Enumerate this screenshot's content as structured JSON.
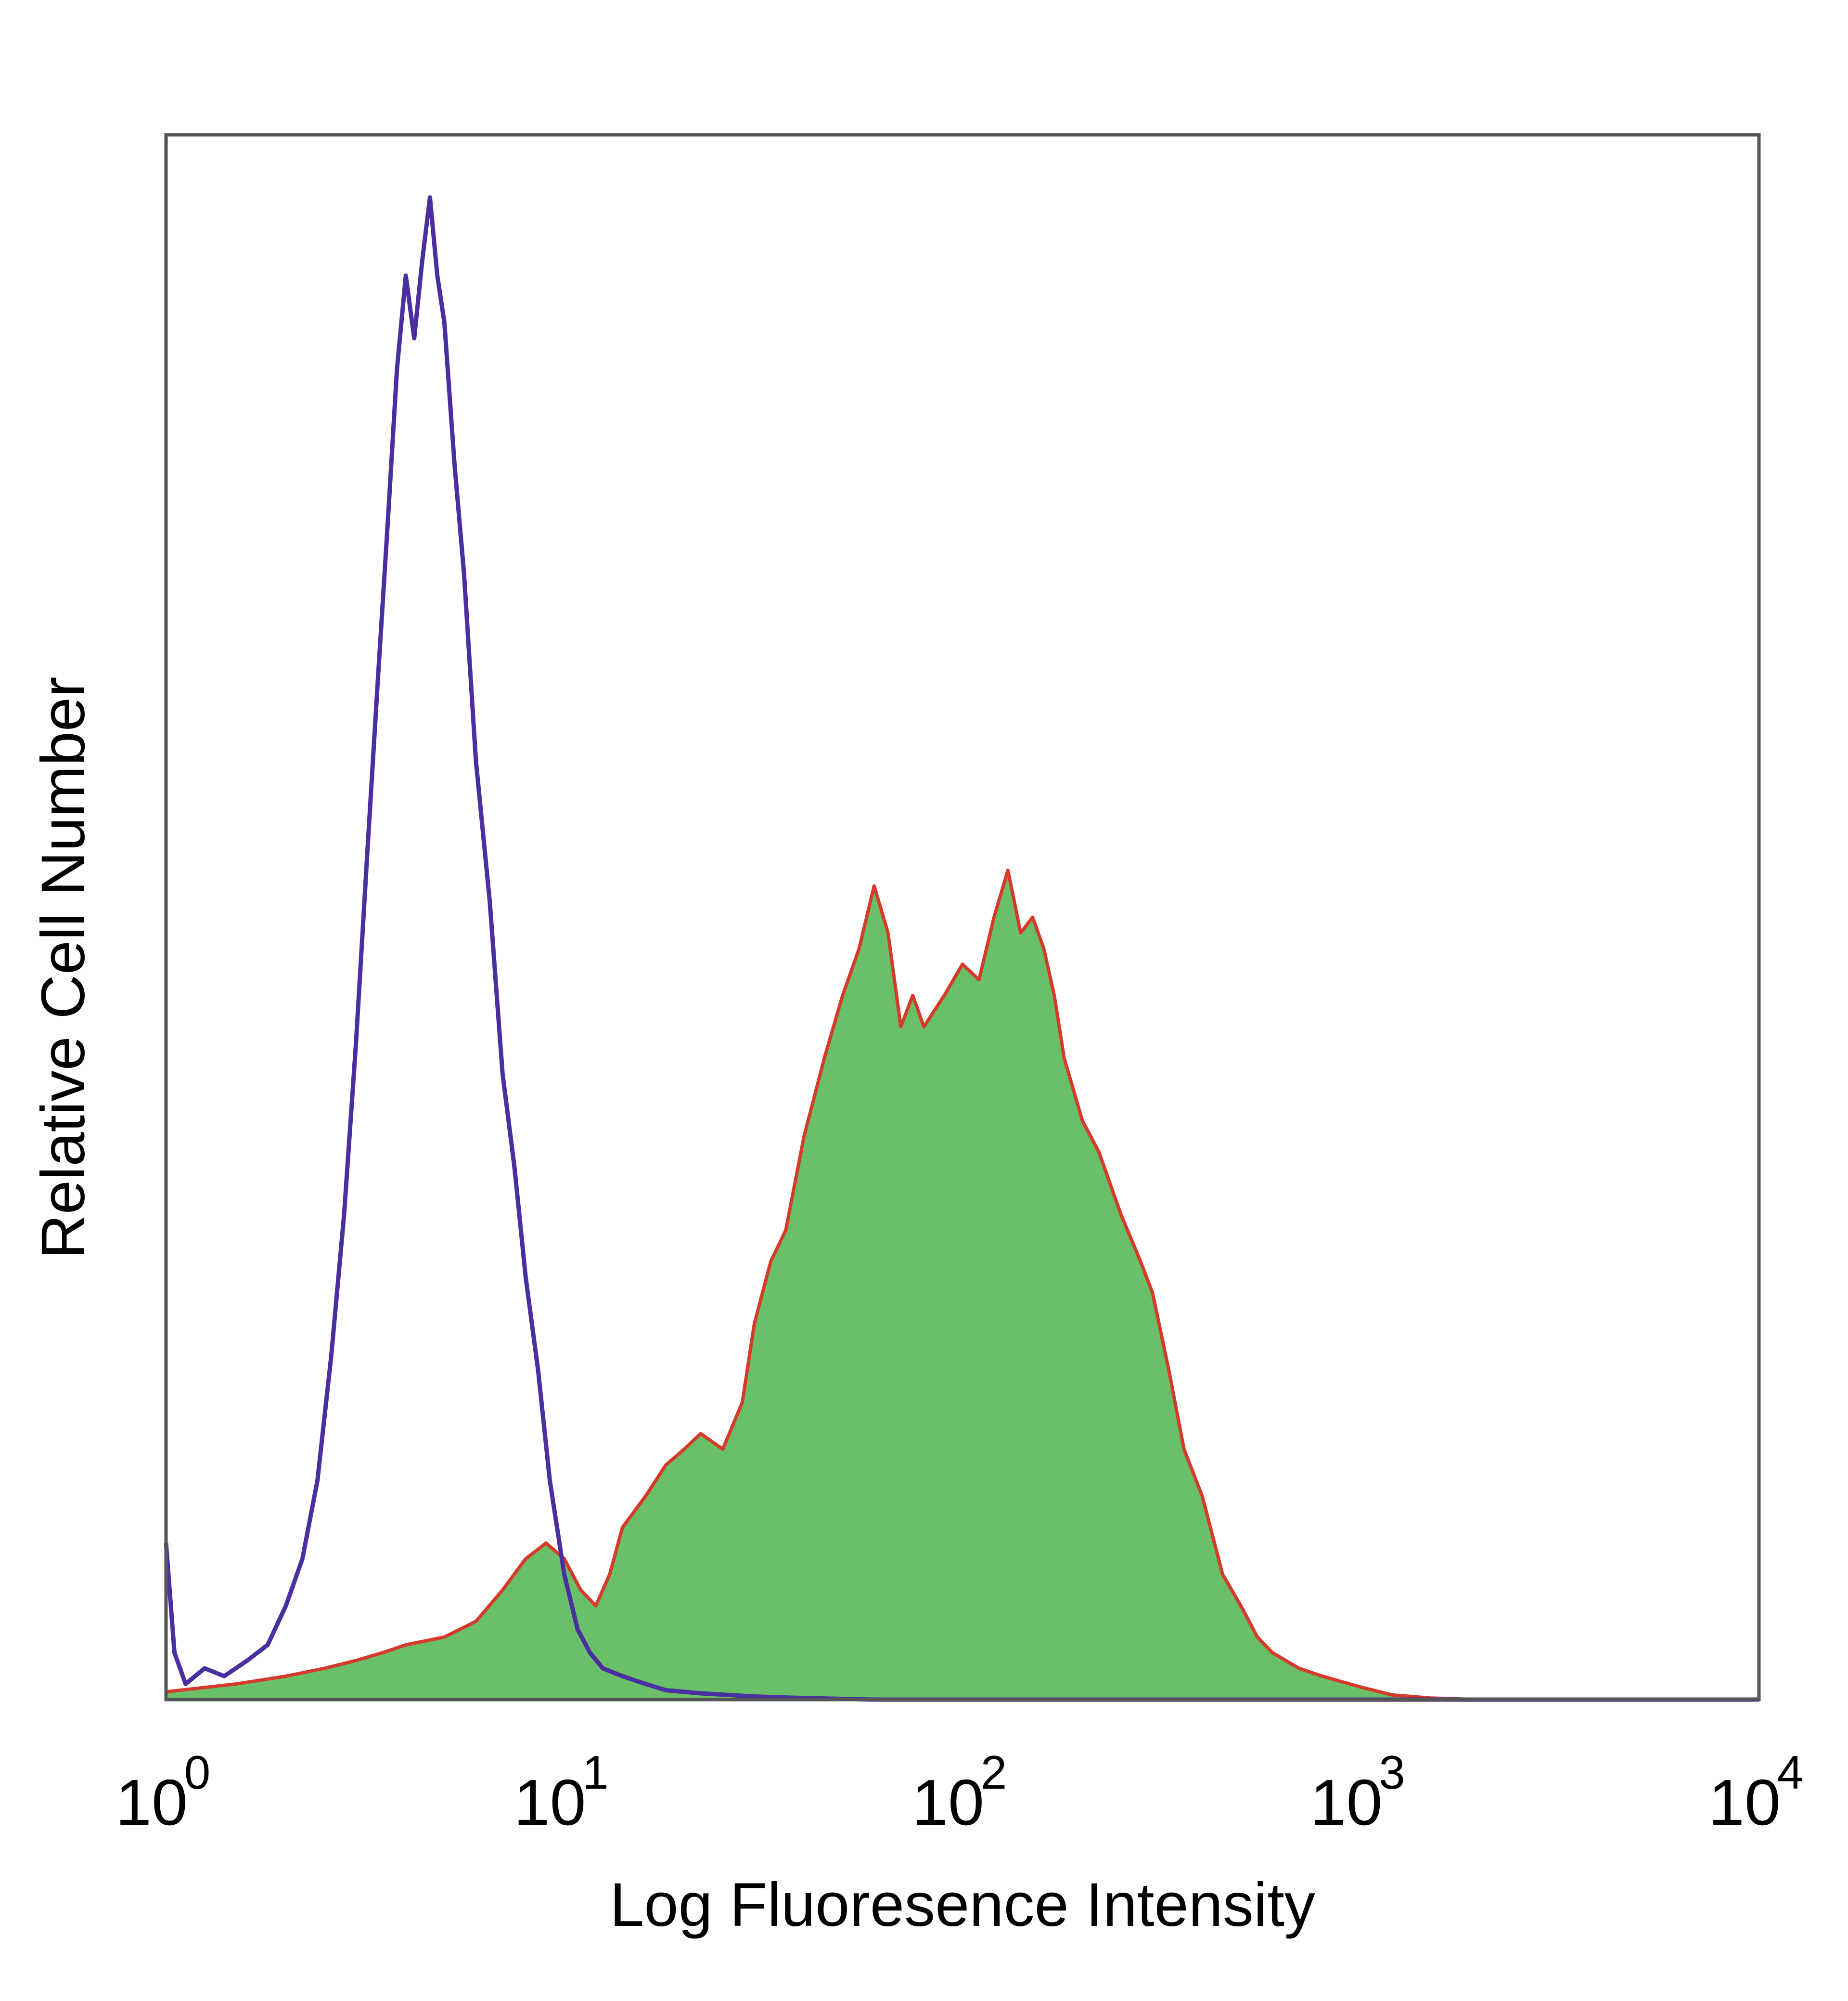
{
  "chart_data": {
    "type": "area",
    "xlabel": "Log Fluoresence Intensity",
    "ylabel": "Relative Cell Number",
    "x_scale": "log",
    "xlim": [
      1,
      10000
    ],
    "ylim": [
      0,
      100
    ],
    "grid": false,
    "legend": "none",
    "x_ticks": [
      {
        "value": 1,
        "base": "10",
        "exp": "0"
      },
      {
        "value": 10,
        "base": "10",
        "exp": "1"
      },
      {
        "value": 100,
        "base": "10",
        "exp": "2"
      },
      {
        "value": 1000,
        "base": "10",
        "exp": "3"
      },
      {
        "value": 10000,
        "base": "10",
        "exp": "4"
      }
    ],
    "series": [
      {
        "style": "outline",
        "color": "#4b2fa0",
        "points": [
          [
            1.0,
            10
          ],
          [
            1.05,
            3
          ],
          [
            1.12,
            1
          ],
          [
            1.25,
            2
          ],
          [
            1.4,
            1.5
          ],
          [
            1.6,
            2.5
          ],
          [
            1.8,
            3.5
          ],
          [
            2.0,
            6
          ],
          [
            2.2,
            9
          ],
          [
            2.4,
            14
          ],
          [
            2.6,
            22
          ],
          [
            2.8,
            31
          ],
          [
            3.0,
            42
          ],
          [
            3.2,
            54
          ],
          [
            3.4,
            65
          ],
          [
            3.6,
            75
          ],
          [
            3.8,
            85
          ],
          [
            4.0,
            91
          ],
          [
            4.2,
            87
          ],
          [
            4.4,
            92
          ],
          [
            4.6,
            96
          ],
          [
            4.8,
            91
          ],
          [
            5.0,
            88
          ],
          [
            5.3,
            79
          ],
          [
            5.6,
            72
          ],
          [
            6.0,
            60
          ],
          [
            6.5,
            51
          ],
          [
            7.0,
            40
          ],
          [
            7.5,
            34
          ],
          [
            8.0,
            27
          ],
          [
            8.6,
            21
          ],
          [
            9.2,
            14
          ],
          [
            10.0,
            8
          ],
          [
            10.8,
            4.5
          ],
          [
            11.6,
            3
          ],
          [
            12.5,
            2
          ],
          [
            14.0,
            1.5
          ],
          [
            16.0,
            1
          ],
          [
            18.0,
            0.6
          ],
          [
            22.0,
            0.4
          ],
          [
            30.0,
            0.2
          ],
          [
            40.0,
            0.1
          ],
          [
            60.0,
            0
          ],
          [
            10000,
            0
          ]
        ]
      },
      {
        "style": "filled",
        "fill": "#6abf69",
        "line": "#d63a2a",
        "points": [
          [
            1.0,
            0.5
          ],
          [
            1.5,
            1
          ],
          [
            2.0,
            1.5
          ],
          [
            2.5,
            2
          ],
          [
            3.0,
            2.5
          ],
          [
            3.5,
            3
          ],
          [
            4.0,
            3.5
          ],
          [
            5.0,
            4
          ],
          [
            6.0,
            5
          ],
          [
            7.0,
            7
          ],
          [
            8.0,
            9
          ],
          [
            9.0,
            10
          ],
          [
            10.0,
            9
          ],
          [
            11.0,
            7
          ],
          [
            12.0,
            6
          ],
          [
            13.0,
            8
          ],
          [
            14.0,
            11
          ],
          [
            16.0,
            13
          ],
          [
            18.0,
            15
          ],
          [
            20.0,
            16
          ],
          [
            22.0,
            17
          ],
          [
            25.0,
            16
          ],
          [
            28.0,
            19
          ],
          [
            30.0,
            24
          ],
          [
            33.0,
            28
          ],
          [
            36.0,
            30
          ],
          [
            40.0,
            36
          ],
          [
            45.0,
            41
          ],
          [
            50.0,
            45
          ],
          [
            55.0,
            48
          ],
          [
            60.0,
            52
          ],
          [
            65.0,
            49
          ],
          [
            70.0,
            43
          ],
          [
            75.0,
            45
          ],
          [
            80.0,
            43
          ],
          [
            90.0,
            45
          ],
          [
            100.0,
            47
          ],
          [
            110.0,
            46
          ],
          [
            120.0,
            50
          ],
          [
            130.0,
            53
          ],
          [
            140.0,
            49
          ],
          [
            150.0,
            50
          ],
          [
            160.0,
            48
          ],
          [
            170.0,
            45
          ],
          [
            180.0,
            41
          ],
          [
            200.0,
            37
          ],
          [
            220.0,
            35
          ],
          [
            250.0,
            31
          ],
          [
            280.0,
            28
          ],
          [
            300.0,
            26
          ],
          [
            330.0,
            21
          ],
          [
            360.0,
            16
          ],
          [
            400.0,
            13
          ],
          [
            450.0,
            8
          ],
          [
            500.0,
            6
          ],
          [
            550.0,
            4
          ],
          [
            600.0,
            3
          ],
          [
            700.0,
            2
          ],
          [
            800.0,
            1.5
          ],
          [
            1000.0,
            0.8
          ],
          [
            1200.0,
            0.3
          ],
          [
            1500.0,
            0.1
          ],
          [
            2000.0,
            0
          ],
          [
            10000,
            0
          ]
        ]
      }
    ]
  }
}
